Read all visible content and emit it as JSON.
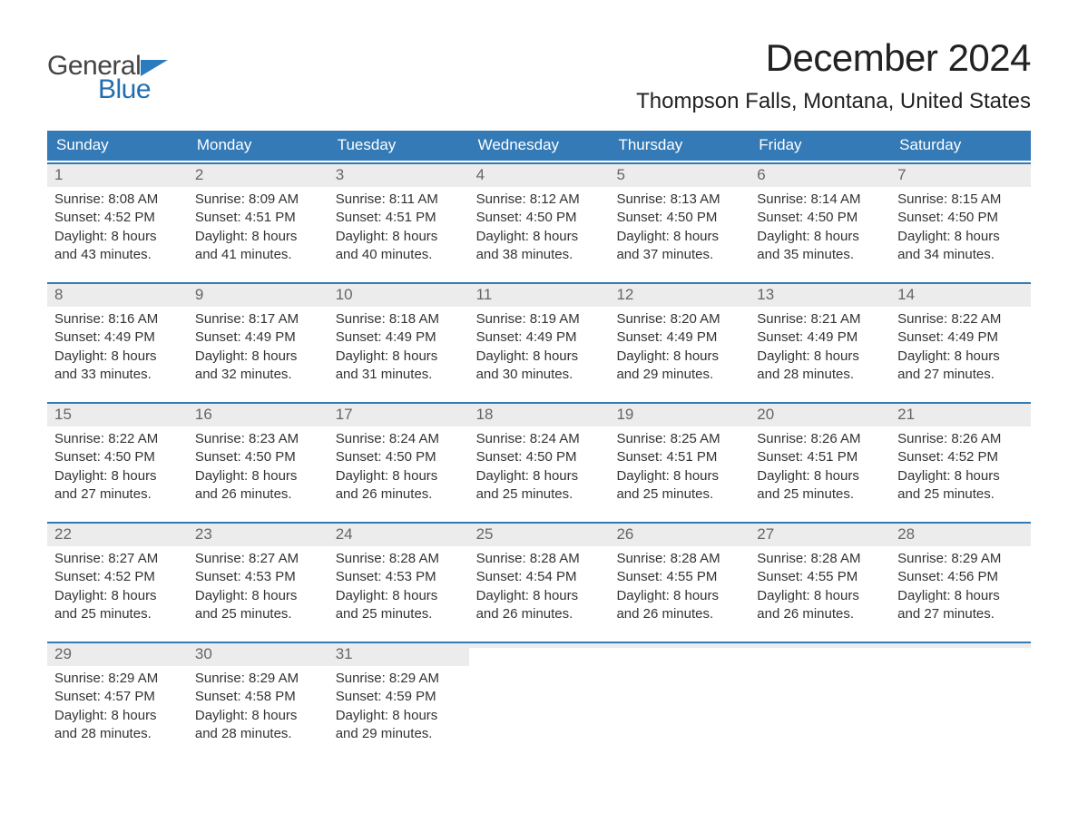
{
  "brand": {
    "word1": "General",
    "word2": "Blue",
    "grey": "#444444",
    "blue": "#1f6fb0",
    "flag_color": "#2a7cbf"
  },
  "title": "December 2024",
  "location": "Thompson Falls, Montana, United States",
  "colors": {
    "header_bg": "#337ab7",
    "header_text": "#ffffff",
    "week_border": "#337ab7",
    "daynum_bg": "#ececec",
    "daynum_text": "#666666",
    "body_text": "#333333",
    "page_bg": "#ffffff"
  },
  "typography": {
    "title_fontsize": 42,
    "location_fontsize": 24,
    "header_fontsize": 17,
    "daynum_fontsize": 17,
    "body_fontsize": 15,
    "logo_fontsize": 30
  },
  "day_headers": [
    "Sunday",
    "Monday",
    "Tuesday",
    "Wednesday",
    "Thursday",
    "Friday",
    "Saturday"
  ],
  "weeks": [
    [
      {
        "n": "1",
        "sunrise": "Sunrise: 8:08 AM",
        "sunset": "Sunset: 4:52 PM",
        "d1": "Daylight: 8 hours",
        "d2": "and 43 minutes."
      },
      {
        "n": "2",
        "sunrise": "Sunrise: 8:09 AM",
        "sunset": "Sunset: 4:51 PM",
        "d1": "Daylight: 8 hours",
        "d2": "and 41 minutes."
      },
      {
        "n": "3",
        "sunrise": "Sunrise: 8:11 AM",
        "sunset": "Sunset: 4:51 PM",
        "d1": "Daylight: 8 hours",
        "d2": "and 40 minutes."
      },
      {
        "n": "4",
        "sunrise": "Sunrise: 8:12 AM",
        "sunset": "Sunset: 4:50 PM",
        "d1": "Daylight: 8 hours",
        "d2": "and 38 minutes."
      },
      {
        "n": "5",
        "sunrise": "Sunrise: 8:13 AM",
        "sunset": "Sunset: 4:50 PM",
        "d1": "Daylight: 8 hours",
        "d2": "and 37 minutes."
      },
      {
        "n": "6",
        "sunrise": "Sunrise: 8:14 AM",
        "sunset": "Sunset: 4:50 PM",
        "d1": "Daylight: 8 hours",
        "d2": "and 35 minutes."
      },
      {
        "n": "7",
        "sunrise": "Sunrise: 8:15 AM",
        "sunset": "Sunset: 4:50 PM",
        "d1": "Daylight: 8 hours",
        "d2": "and 34 minutes."
      }
    ],
    [
      {
        "n": "8",
        "sunrise": "Sunrise: 8:16 AM",
        "sunset": "Sunset: 4:49 PM",
        "d1": "Daylight: 8 hours",
        "d2": "and 33 minutes."
      },
      {
        "n": "9",
        "sunrise": "Sunrise: 8:17 AM",
        "sunset": "Sunset: 4:49 PM",
        "d1": "Daylight: 8 hours",
        "d2": "and 32 minutes."
      },
      {
        "n": "10",
        "sunrise": "Sunrise: 8:18 AM",
        "sunset": "Sunset: 4:49 PM",
        "d1": "Daylight: 8 hours",
        "d2": "and 31 minutes."
      },
      {
        "n": "11",
        "sunrise": "Sunrise: 8:19 AM",
        "sunset": "Sunset: 4:49 PM",
        "d1": "Daylight: 8 hours",
        "d2": "and 30 minutes."
      },
      {
        "n": "12",
        "sunrise": "Sunrise: 8:20 AM",
        "sunset": "Sunset: 4:49 PM",
        "d1": "Daylight: 8 hours",
        "d2": "and 29 minutes."
      },
      {
        "n": "13",
        "sunrise": "Sunrise: 8:21 AM",
        "sunset": "Sunset: 4:49 PM",
        "d1": "Daylight: 8 hours",
        "d2": "and 28 minutes."
      },
      {
        "n": "14",
        "sunrise": "Sunrise: 8:22 AM",
        "sunset": "Sunset: 4:49 PM",
        "d1": "Daylight: 8 hours",
        "d2": "and 27 minutes."
      }
    ],
    [
      {
        "n": "15",
        "sunrise": "Sunrise: 8:22 AM",
        "sunset": "Sunset: 4:50 PM",
        "d1": "Daylight: 8 hours",
        "d2": "and 27 minutes."
      },
      {
        "n": "16",
        "sunrise": "Sunrise: 8:23 AM",
        "sunset": "Sunset: 4:50 PM",
        "d1": "Daylight: 8 hours",
        "d2": "and 26 minutes."
      },
      {
        "n": "17",
        "sunrise": "Sunrise: 8:24 AM",
        "sunset": "Sunset: 4:50 PM",
        "d1": "Daylight: 8 hours",
        "d2": "and 26 minutes."
      },
      {
        "n": "18",
        "sunrise": "Sunrise: 8:24 AM",
        "sunset": "Sunset: 4:50 PM",
        "d1": "Daylight: 8 hours",
        "d2": "and 25 minutes."
      },
      {
        "n": "19",
        "sunrise": "Sunrise: 8:25 AM",
        "sunset": "Sunset: 4:51 PM",
        "d1": "Daylight: 8 hours",
        "d2": "and 25 minutes."
      },
      {
        "n": "20",
        "sunrise": "Sunrise: 8:26 AM",
        "sunset": "Sunset: 4:51 PM",
        "d1": "Daylight: 8 hours",
        "d2": "and 25 minutes."
      },
      {
        "n": "21",
        "sunrise": "Sunrise: 8:26 AM",
        "sunset": "Sunset: 4:52 PM",
        "d1": "Daylight: 8 hours",
        "d2": "and 25 minutes."
      }
    ],
    [
      {
        "n": "22",
        "sunrise": "Sunrise: 8:27 AM",
        "sunset": "Sunset: 4:52 PM",
        "d1": "Daylight: 8 hours",
        "d2": "and 25 minutes."
      },
      {
        "n": "23",
        "sunrise": "Sunrise: 8:27 AM",
        "sunset": "Sunset: 4:53 PM",
        "d1": "Daylight: 8 hours",
        "d2": "and 25 minutes."
      },
      {
        "n": "24",
        "sunrise": "Sunrise: 8:28 AM",
        "sunset": "Sunset: 4:53 PM",
        "d1": "Daylight: 8 hours",
        "d2": "and 25 minutes."
      },
      {
        "n": "25",
        "sunrise": "Sunrise: 8:28 AM",
        "sunset": "Sunset: 4:54 PM",
        "d1": "Daylight: 8 hours",
        "d2": "and 26 minutes."
      },
      {
        "n": "26",
        "sunrise": "Sunrise: 8:28 AM",
        "sunset": "Sunset: 4:55 PM",
        "d1": "Daylight: 8 hours",
        "d2": "and 26 minutes."
      },
      {
        "n": "27",
        "sunrise": "Sunrise: 8:28 AM",
        "sunset": "Sunset: 4:55 PM",
        "d1": "Daylight: 8 hours",
        "d2": "and 26 minutes."
      },
      {
        "n": "28",
        "sunrise": "Sunrise: 8:29 AM",
        "sunset": "Sunset: 4:56 PM",
        "d1": "Daylight: 8 hours",
        "d2": "and 27 minutes."
      }
    ],
    [
      {
        "n": "29",
        "sunrise": "Sunrise: 8:29 AM",
        "sunset": "Sunset: 4:57 PM",
        "d1": "Daylight: 8 hours",
        "d2": "and 28 minutes."
      },
      {
        "n": "30",
        "sunrise": "Sunrise: 8:29 AM",
        "sunset": "Sunset: 4:58 PM",
        "d1": "Daylight: 8 hours",
        "d2": "and 28 minutes."
      },
      {
        "n": "31",
        "sunrise": "Sunrise: 8:29 AM",
        "sunset": "Sunset: 4:59 PM",
        "d1": "Daylight: 8 hours",
        "d2": "and 29 minutes."
      },
      {
        "empty": true
      },
      {
        "empty": true
      },
      {
        "empty": true
      },
      {
        "empty": true
      }
    ]
  ]
}
